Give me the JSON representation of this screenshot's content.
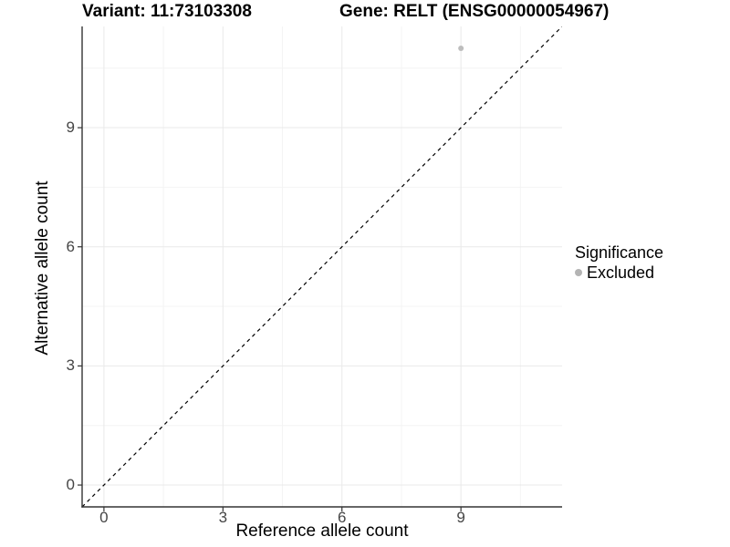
{
  "titles": {
    "left": "Variant: 11:73103308",
    "right": "Gene: RELT (ENSG00000054967)"
  },
  "chart_data": {
    "type": "scatter",
    "xlabel": "Reference allele count",
    "ylabel": "Alternative allele count",
    "xlim": [
      -0.55,
      11.55
    ],
    "ylim": [
      -0.55,
      11.55
    ],
    "x_major_ticks": [
      0,
      3,
      6,
      9
    ],
    "y_major_ticks": [
      0,
      3,
      6,
      9
    ],
    "x_minor_ticks": [
      1.5,
      4.5,
      7.5,
      10.5
    ],
    "y_minor_ticks": [
      1.5,
      4.5,
      7.5,
      10.5
    ],
    "grid": "major+minor",
    "series": [
      {
        "name": "Excluded",
        "color": "#bdbdbd",
        "points": [
          {
            "x": 9,
            "y": 11
          }
        ]
      }
    ],
    "reference_line": {
      "kind": "identity y=x",
      "style": "dashed",
      "color": "#000000"
    },
    "legend": {
      "title": "Significance",
      "position": "right",
      "items": [
        {
          "label": "Excluded",
          "color": "#b4b4b4"
        }
      ]
    }
  },
  "colors": {
    "background": "#ffffff",
    "axis_line": "#333333",
    "tick_mark": "#333333",
    "tick_label": "#454545",
    "grid_major": "#e9e9e9",
    "grid_minor": "#f4f4f4"
  }
}
